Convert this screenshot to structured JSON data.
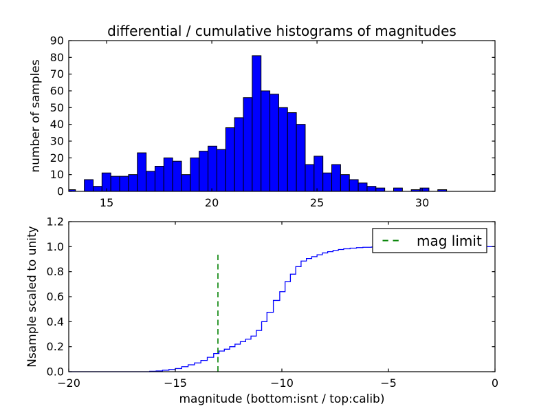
{
  "figure": {
    "title": "differential / cumulative histograms of magnitudes",
    "background": "#ffffff",
    "frame_color": "#000000"
  },
  "chart_data": [
    {
      "type": "bar",
      "position": "top",
      "ylabel": "number of samples",
      "xlim": [
        13.2,
        33.46
      ],
      "ylim": [
        0,
        90
      ],
      "xticks": [
        15,
        20,
        25,
        30
      ],
      "xticklabels": [
        "15",
        "20",
        "25",
        "30"
      ],
      "yticks": [
        0,
        10,
        20,
        30,
        40,
        50,
        60,
        70,
        80,
        90
      ],
      "yticklabels": [
        "0",
        "10",
        "20",
        "30",
        "40",
        "50",
        "60",
        "70",
        "80",
        "90"
      ],
      "grid": false,
      "bins": {
        "start": 13.1,
        "width": 0.42
      },
      "values": [
        1,
        0,
        7,
        3,
        11,
        9,
        9,
        10,
        23,
        12,
        15,
        20,
        18,
        10,
        20,
        24,
        27,
        25,
        38,
        44,
        56,
        81,
        60,
        58,
        50,
        47,
        40,
        16,
        21,
        11,
        16,
        10,
        7,
        5,
        3,
        2,
        0,
        2,
        0,
        1,
        2,
        0,
        1
      ],
      "bar_color": "#0000ff",
      "bar_edge_color": "#000000"
    },
    {
      "type": "step-line",
      "position": "bottom",
      "ylabel": "Nsample scaled to unity",
      "xlabel": "magnitude (bottom:isnt / top:calib)",
      "xlim": [
        -20,
        0
      ],
      "ylim": [
        0,
        1.2
      ],
      "xticks": [
        -20,
        -15,
        -10,
        -5,
        0
      ],
      "xticklabels": [
        "−20",
        "−15",
        "−10",
        "−5",
        "0"
      ],
      "yticks": [
        0,
        0.2,
        0.4,
        0.6,
        0.8,
        1.0,
        1.2
      ],
      "yticklabels": [
        "0.0",
        "0.2",
        "0.4",
        "0.6",
        "0.8",
        "1.0",
        "1.2"
      ],
      "grid": false,
      "line_color": "#0000ff",
      "start": [
        -20,
        0
      ],
      "steps": [
        [
          -16.2,
          0.003
        ],
        [
          -15.9,
          0.006
        ],
        [
          -15.6,
          0.012
        ],
        [
          -15.3,
          0.018
        ],
        [
          -15.0,
          0.025
        ],
        [
          -14.7,
          0.04
        ],
        [
          -14.4,
          0.055
        ],
        [
          -14.1,
          0.07
        ],
        [
          -13.8,
          0.09
        ],
        [
          -13.5,
          0.115
        ],
        [
          -13.2,
          0.145
        ],
        [
          -12.95,
          0.165
        ],
        [
          -12.7,
          0.18
        ],
        [
          -12.45,
          0.2
        ],
        [
          -12.2,
          0.22
        ],
        [
          -11.95,
          0.24
        ],
        [
          -11.7,
          0.26
        ],
        [
          -11.45,
          0.285
        ],
        [
          -11.2,
          0.33
        ],
        [
          -10.95,
          0.4
        ],
        [
          -10.7,
          0.475
        ],
        [
          -10.4,
          0.57
        ],
        [
          -10.1,
          0.64
        ],
        [
          -9.85,
          0.72
        ],
        [
          -9.6,
          0.78
        ],
        [
          -9.35,
          0.84
        ],
        [
          -9.1,
          0.885
        ],
        [
          -8.85,
          0.905
        ],
        [
          -8.6,
          0.92
        ],
        [
          -8.35,
          0.935
        ],
        [
          -8.1,
          0.95
        ],
        [
          -7.85,
          0.96
        ],
        [
          -7.6,
          0.97
        ],
        [
          -7.35,
          0.977
        ],
        [
          -7.1,
          0.983
        ],
        [
          -6.8,
          0.988
        ],
        [
          -6.5,
          0.992
        ],
        [
          -6.2,
          0.995
        ],
        [
          -5.8,
          0.997
        ],
        [
          -5.3,
          0.998
        ],
        [
          -4.6,
          0.999
        ],
        [
          -3.8,
          1.0
        ]
      ],
      "end_x": 0,
      "vline": {
        "x": -13.0,
        "y0": 0,
        "y1": 0.96,
        "color": "#008000",
        "style": "dashed"
      },
      "legend": {
        "label": "mag limit",
        "loc": "upper right",
        "line_color": "#008000",
        "line_style": "dashed"
      }
    }
  ]
}
